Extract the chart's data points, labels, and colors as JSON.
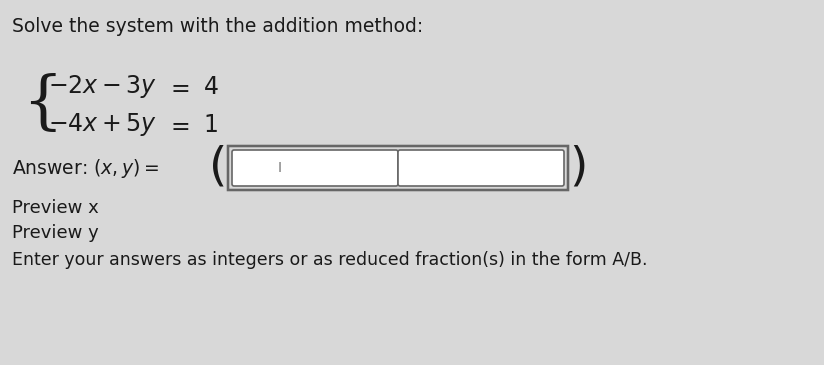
{
  "title_text": "Solve the system with the addition method:",
  "preview_x": "Preview x",
  "preview_y": "Preview y",
  "footer": "Enter your answers as integers or as reduced fraction(s) in the form A/B.",
  "bg_color": "#d8d8d8",
  "text_color": "#1a1a1a",
  "box_color": "#ffffff",
  "box_border": "#666666",
  "title_fontsize": 13.5,
  "eq_fontsize": 17,
  "answer_fontsize": 13.5,
  "preview_fontsize": 13,
  "footer_fontsize": 12.5
}
